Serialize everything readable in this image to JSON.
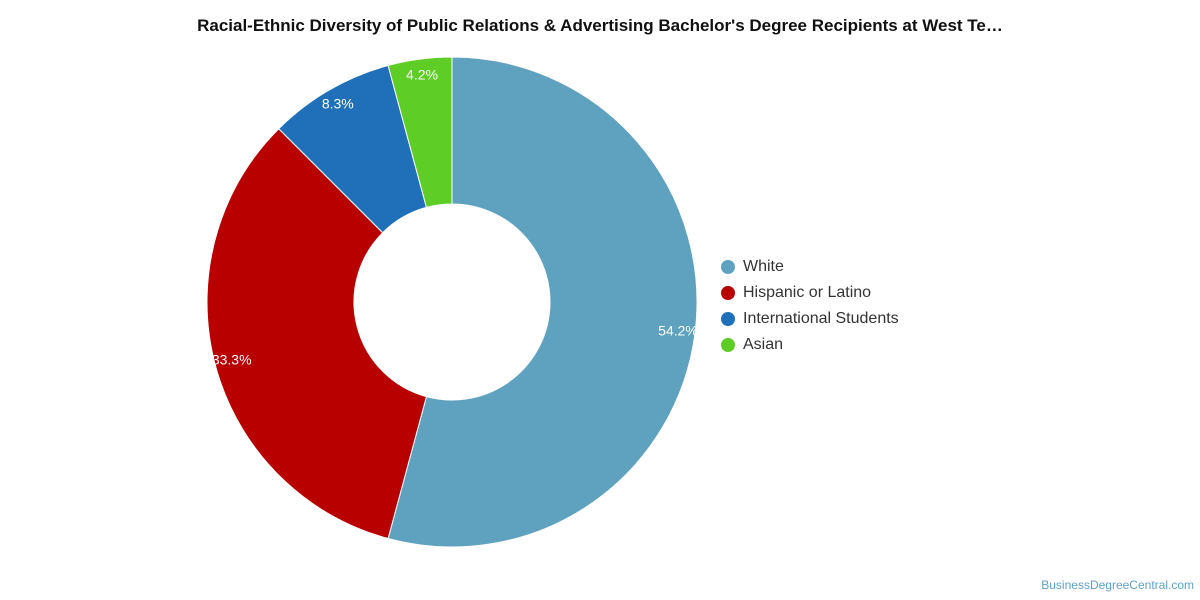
{
  "chart_data": {
    "type": "pie",
    "variant": "donut",
    "title": "Racial-Ethnic Diversity of Public Relations & Advertising Bachelor's Degree Recipients at West Te…",
    "slices": [
      {
        "name": "White",
        "value": 54.2,
        "label": "54.2%",
        "color": "#5ea2c0"
      },
      {
        "name": "Hispanic or Latino",
        "value": 33.3,
        "label": "33.3%",
        "color": "#b80000"
      },
      {
        "name": "International Students",
        "value": 8.3,
        "label": "8.3%",
        "color": "#1f70b8"
      },
      {
        "name": "Asian",
        "value": 4.2,
        "label": "4.2%",
        "color": "#5ecd26"
      }
    ],
    "legend_position": "right"
  },
  "footer": {
    "source": "BusinessDegreeCentral.com"
  }
}
